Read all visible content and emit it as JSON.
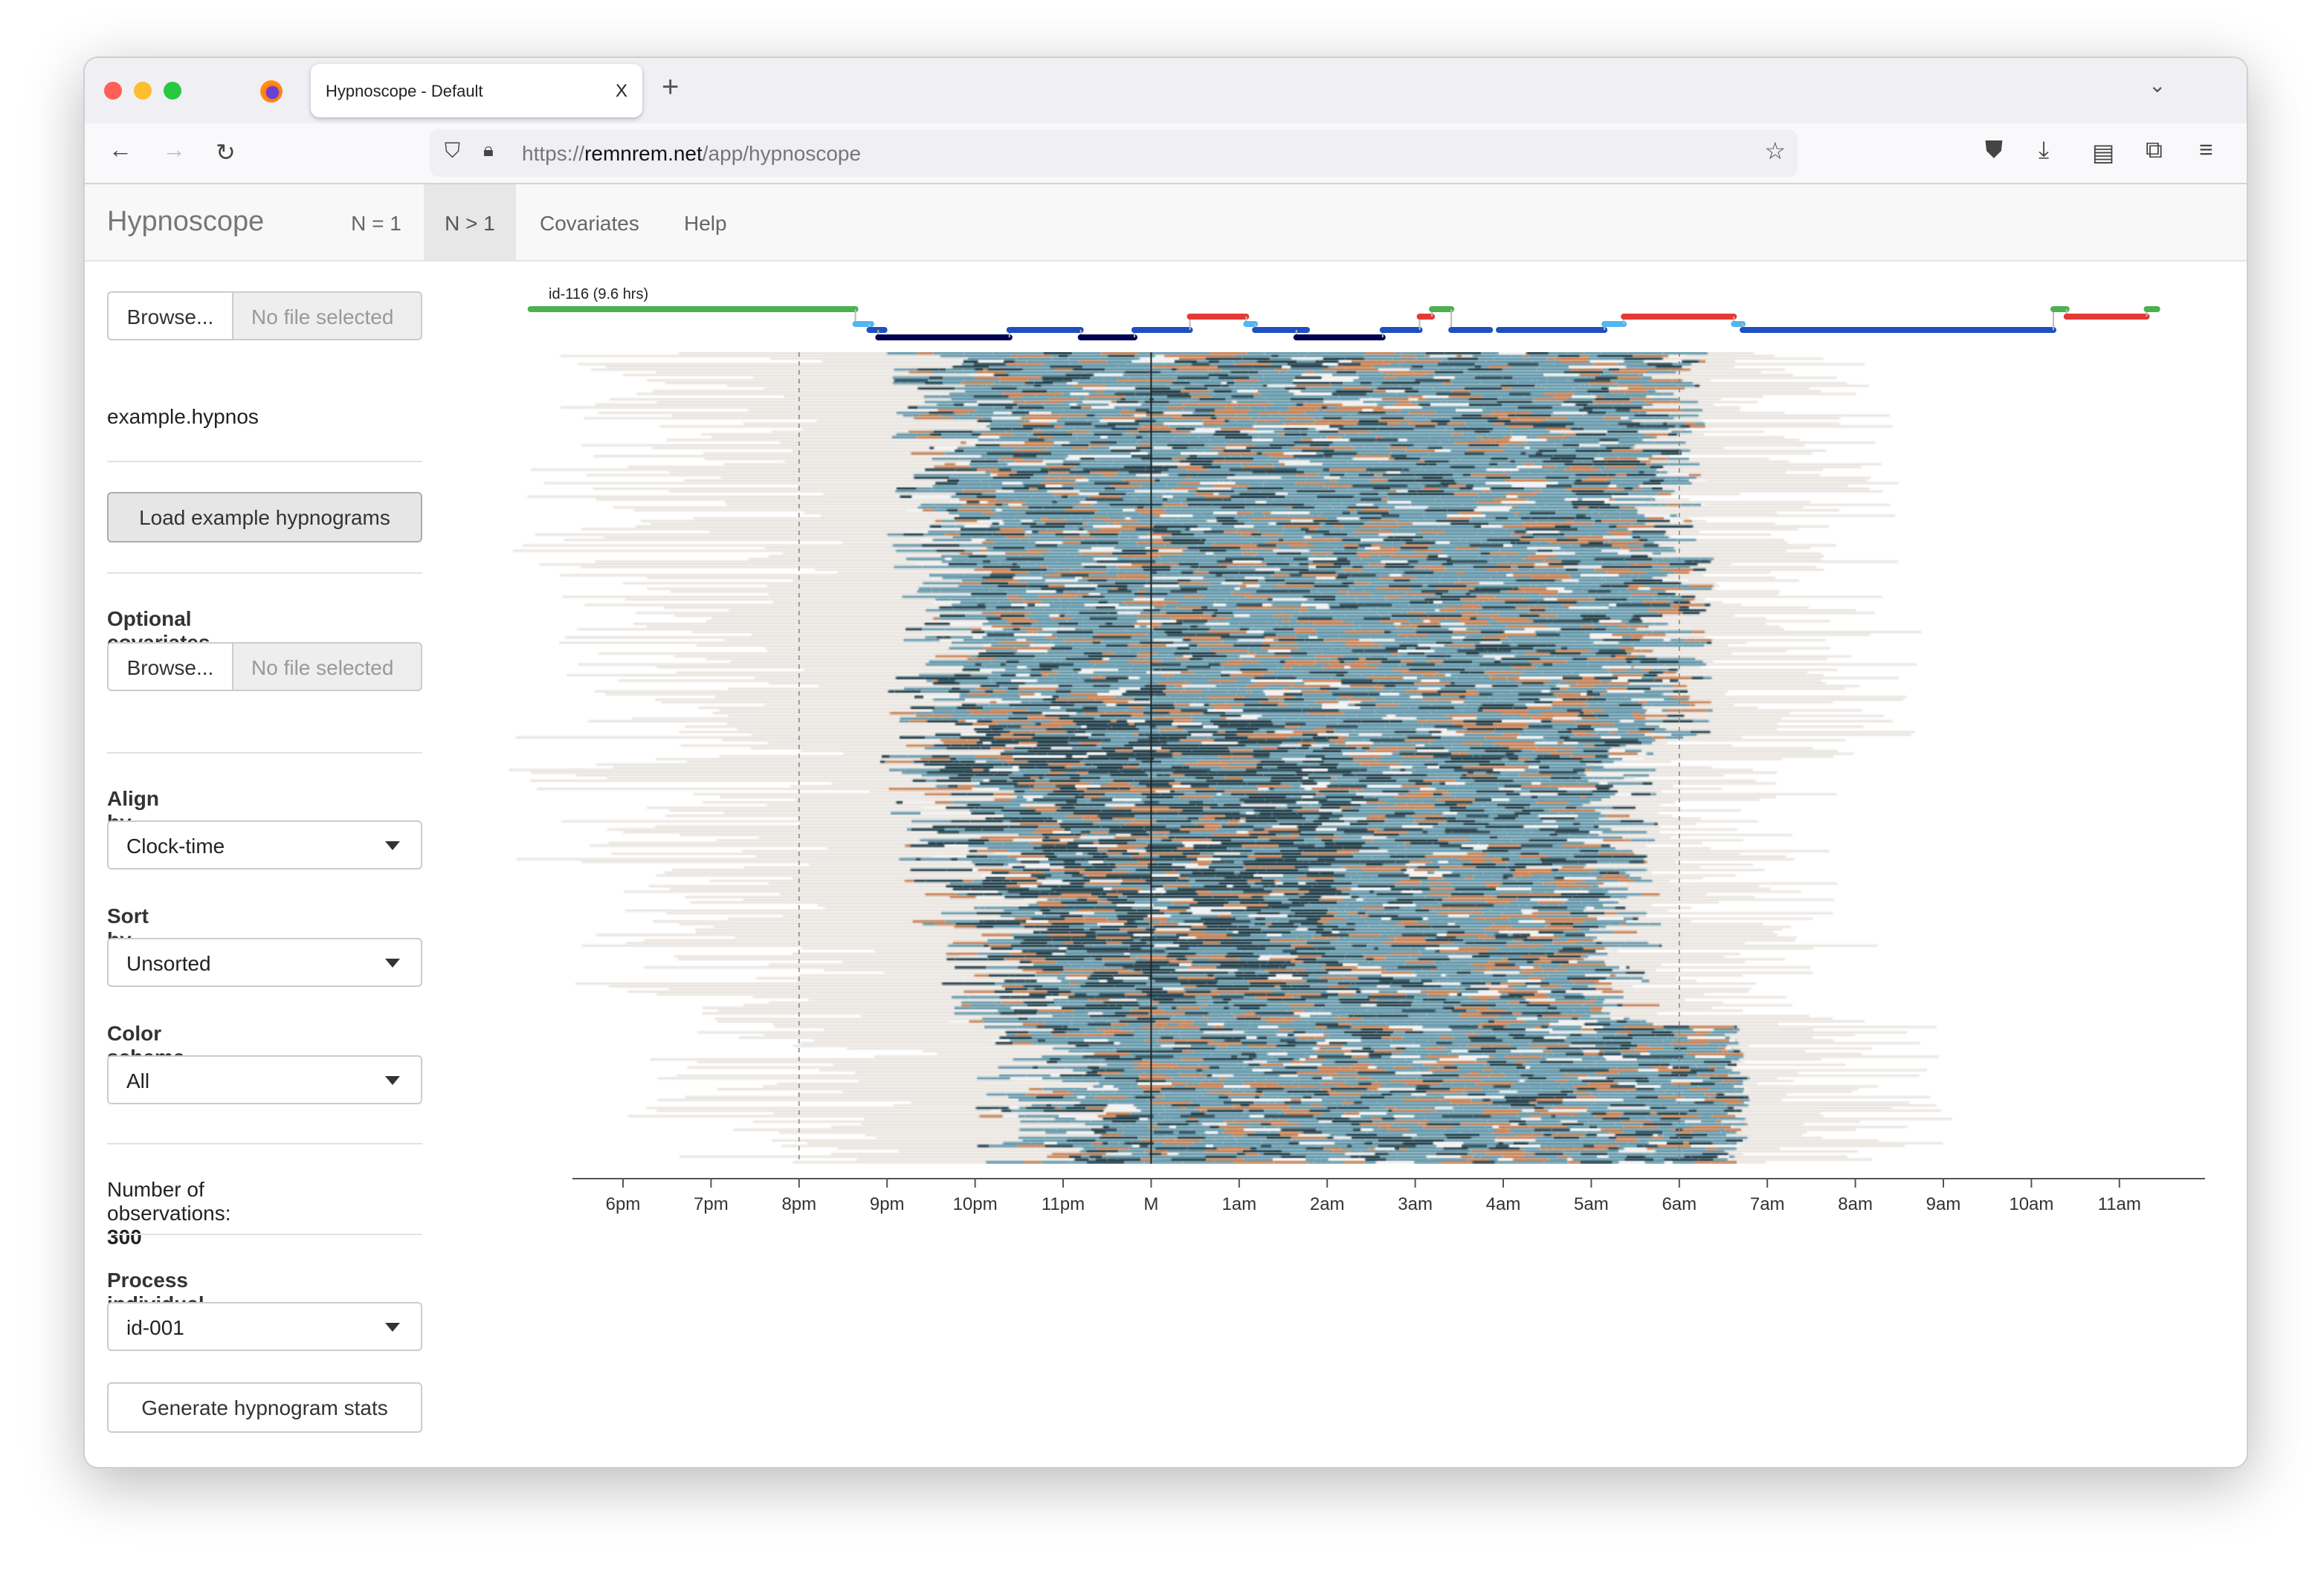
{
  "browser": {
    "tab_title": "Hypnoscope - Default",
    "tab_close": "X",
    "new_tab": "+",
    "url_prefix": "https://",
    "url_host": "remnrem.net",
    "url_path": "/app/hypnoscope"
  },
  "navbar": {
    "brand": "Hypnoscope",
    "items": [
      {
        "label": "N = 1"
      },
      {
        "label": "N > 1",
        "active": true
      },
      {
        "label": "Covariates"
      },
      {
        "label": "Help"
      }
    ]
  },
  "sidebar": {
    "file1": {
      "browse": "Browse...",
      "status": "No file selected"
    },
    "loaded_file": "example.hypnos",
    "load_example": "Load example hypnograms",
    "covariates_label": "Optional covariates",
    "file2": {
      "browse": "Browse...",
      "status": "No file selected"
    },
    "align_label": "Align by",
    "align_value": "Clock-time",
    "sort_label": "Sort by",
    "sort_value": "Unsorted",
    "color_label": "Color scheme",
    "color_value": "All",
    "obs_label": "Number of observations: ",
    "obs_value": "300",
    "process_label": "Process individual",
    "process_value": "id-001",
    "generate": "Generate hypnogram stats"
  },
  "plot": {
    "individual_label": "id-116 (9.6 hrs)",
    "colors": {
      "wake": "#4caf50",
      "rem": "#e53935",
      "n1": "#4fb8f0",
      "n2": "#1e50c0",
      "n3": "#000050",
      "raster_n3": "#0d2f3c",
      "raster_n2": "#5a93a8",
      "raster_rem": "#c57a4a",
      "raster_bg": "#e8e3de"
    },
    "ticks": [
      "6pm",
      "7pm",
      "8pm",
      "9pm",
      "10pm",
      "11pm",
      "M",
      "1am",
      "2am",
      "3am",
      "4am",
      "5am",
      "6am",
      "7am",
      "8am",
      "9am",
      "10am",
      "11am"
    ],
    "tick_hours": [
      18,
      19,
      20,
      21,
      22,
      23,
      24,
      25,
      26,
      27,
      28,
      29,
      30,
      31,
      32,
      33,
      34,
      35
    ],
    "reference_lines": {
      "dashed": [
        20,
        30
      ],
      "solid": [
        24
      ]
    },
    "individual_hypnogram": [
      [
        "W",
        16.95,
        20.64
      ],
      [
        "N1",
        20.64,
        20.82
      ],
      [
        "N2",
        20.8,
        20.97
      ],
      [
        "N3",
        20.9,
        22.39
      ],
      [
        "N2",
        22.39,
        23.2
      ],
      [
        "N3",
        23.2,
        23.81
      ],
      [
        "N2",
        23.81,
        24.44
      ],
      [
        "R",
        24.44,
        25.08
      ],
      [
        "N1",
        25.08,
        25.18
      ],
      [
        "N2",
        25.18,
        25.77
      ],
      [
        "N3",
        25.65,
        26.63
      ],
      [
        "N2",
        26.63,
        27.05
      ],
      [
        "R",
        27.05,
        27.19
      ],
      [
        "W",
        27.19,
        27.41
      ],
      [
        "N2",
        27.41,
        27.85
      ],
      [
        "N2",
        27.95,
        29.15
      ],
      [
        "N1",
        29.15,
        29.37
      ],
      [
        "R",
        29.37,
        30.62
      ],
      [
        "N1",
        30.62,
        30.72
      ],
      [
        "N2",
        30.72,
        34.25
      ],
      [
        "W",
        34.25,
        34.4
      ],
      [
        "R",
        34.4,
        35.31
      ],
      [
        "W",
        35.31,
        35.43
      ]
    ]
  }
}
